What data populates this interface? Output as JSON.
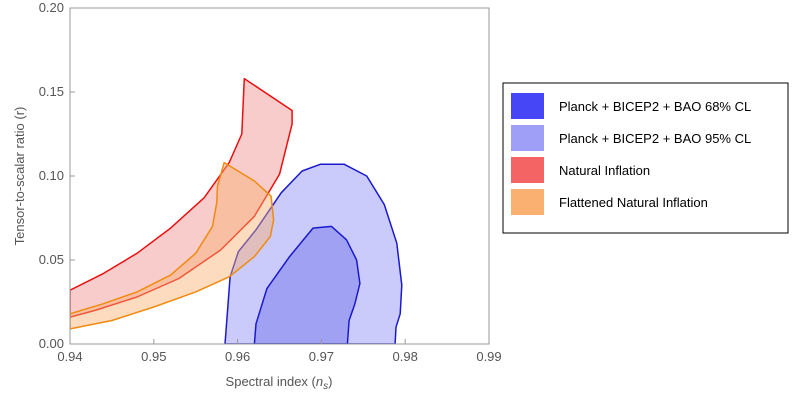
{
  "chart_data": {
    "type": "area",
    "xlabel_main": "Spectral index (",
    "xlabel_sym": "n",
    "xlabel_sub": "s",
    "xlabel_end": ")",
    "ylabel": "Tensor-to-scalar ratio (r)",
    "xlim": [
      0.94,
      0.99
    ],
    "ylim": [
      0.0,
      0.2
    ],
    "xticks": [
      "0.94",
      "0.95",
      "0.96",
      "0.97",
      "0.98",
      "0.99"
    ],
    "yticks": [
      "0.00",
      "0.05",
      "0.10",
      "0.15",
      "0.20"
    ],
    "grid": false,
    "legend_position": "right",
    "series": [
      {
        "name": "Planck + BICEP2 + BAO 95% CL",
        "fill": "#9f9ff7",
        "stroke": "#1a1acc",
        "opacity": 0.55,
        "x": [
          0.9585,
          0.9591,
          0.9601,
          0.9622,
          0.9652,
          0.9677,
          0.9699,
          0.9727,
          0.9754,
          0.9775,
          0.979,
          0.9796,
          0.9794,
          0.9789,
          0.9788,
          0.9585
        ],
        "y": [
          0.0,
          0.04,
          0.055,
          0.068,
          0.09,
          0.103,
          0.107,
          0.107,
          0.1,
          0.083,
          0.06,
          0.035,
          0.018,
          0.01,
          0.0,
          0.0
        ]
      },
      {
        "name": "Planck + BICEP2 + BAO 68% CL",
        "fill": "#6f6fe8",
        "stroke": "#1a1acc",
        "opacity": 0.45,
        "x": [
          0.962,
          0.9622,
          0.9635,
          0.9662,
          0.969,
          0.9712,
          0.973,
          0.9742,
          0.9746,
          0.974,
          0.9733,
          0.9731,
          0.962
        ],
        "y": [
          0.0,
          0.012,
          0.033,
          0.052,
          0.069,
          0.07,
          0.062,
          0.05,
          0.036,
          0.024,
          0.014,
          0.0,
          0.0
        ]
      },
      {
        "name": "Natural Inflation",
        "fill": "#f08080",
        "stroke": "#e81010",
        "opacity": 0.4,
        "x": [
          0.94,
          0.944,
          0.948,
          0.952,
          0.956,
          0.959,
          0.9605,
          0.9608,
          0.9665,
          0.9665,
          0.965,
          0.962,
          0.958,
          0.953,
          0.948,
          0.943,
          0.94
        ],
        "y": [
          0.032,
          0.042,
          0.054,
          0.069,
          0.087,
          0.108,
          0.125,
          0.158,
          0.139,
          0.131,
          0.101,
          0.076,
          0.056,
          0.039,
          0.028,
          0.02,
          0.016
        ]
      },
      {
        "name": "Flattened Natural Inflation",
        "fill": "#f9b070",
        "stroke": "#f08a10",
        "opacity": 0.45,
        "x": [
          0.94,
          0.944,
          0.948,
          0.952,
          0.955,
          0.957,
          0.9575,
          0.9576,
          0.9584,
          0.962,
          0.964,
          0.9643,
          0.9639,
          0.962,
          0.959,
          0.955,
          0.95,
          0.945,
          0.94
        ],
        "y": [
          0.018,
          0.024,
          0.031,
          0.041,
          0.054,
          0.07,
          0.084,
          0.094,
          0.108,
          0.097,
          0.088,
          0.074,
          0.064,
          0.052,
          0.04,
          0.031,
          0.022,
          0.014,
          0.009
        ]
      }
    ],
    "legend": [
      {
        "label": "Planck + BICEP2 + BAO 68% CL",
        "color": "#4646f7"
      },
      {
        "label": "Planck + BICEP2 + BAO 95% CL",
        "color": "#9f9ff7"
      },
      {
        "label": "Natural Inflation",
        "color": "#f56464"
      },
      {
        "label": "Flattened Natural Inflation",
        "color": "#f9b070"
      }
    ]
  }
}
